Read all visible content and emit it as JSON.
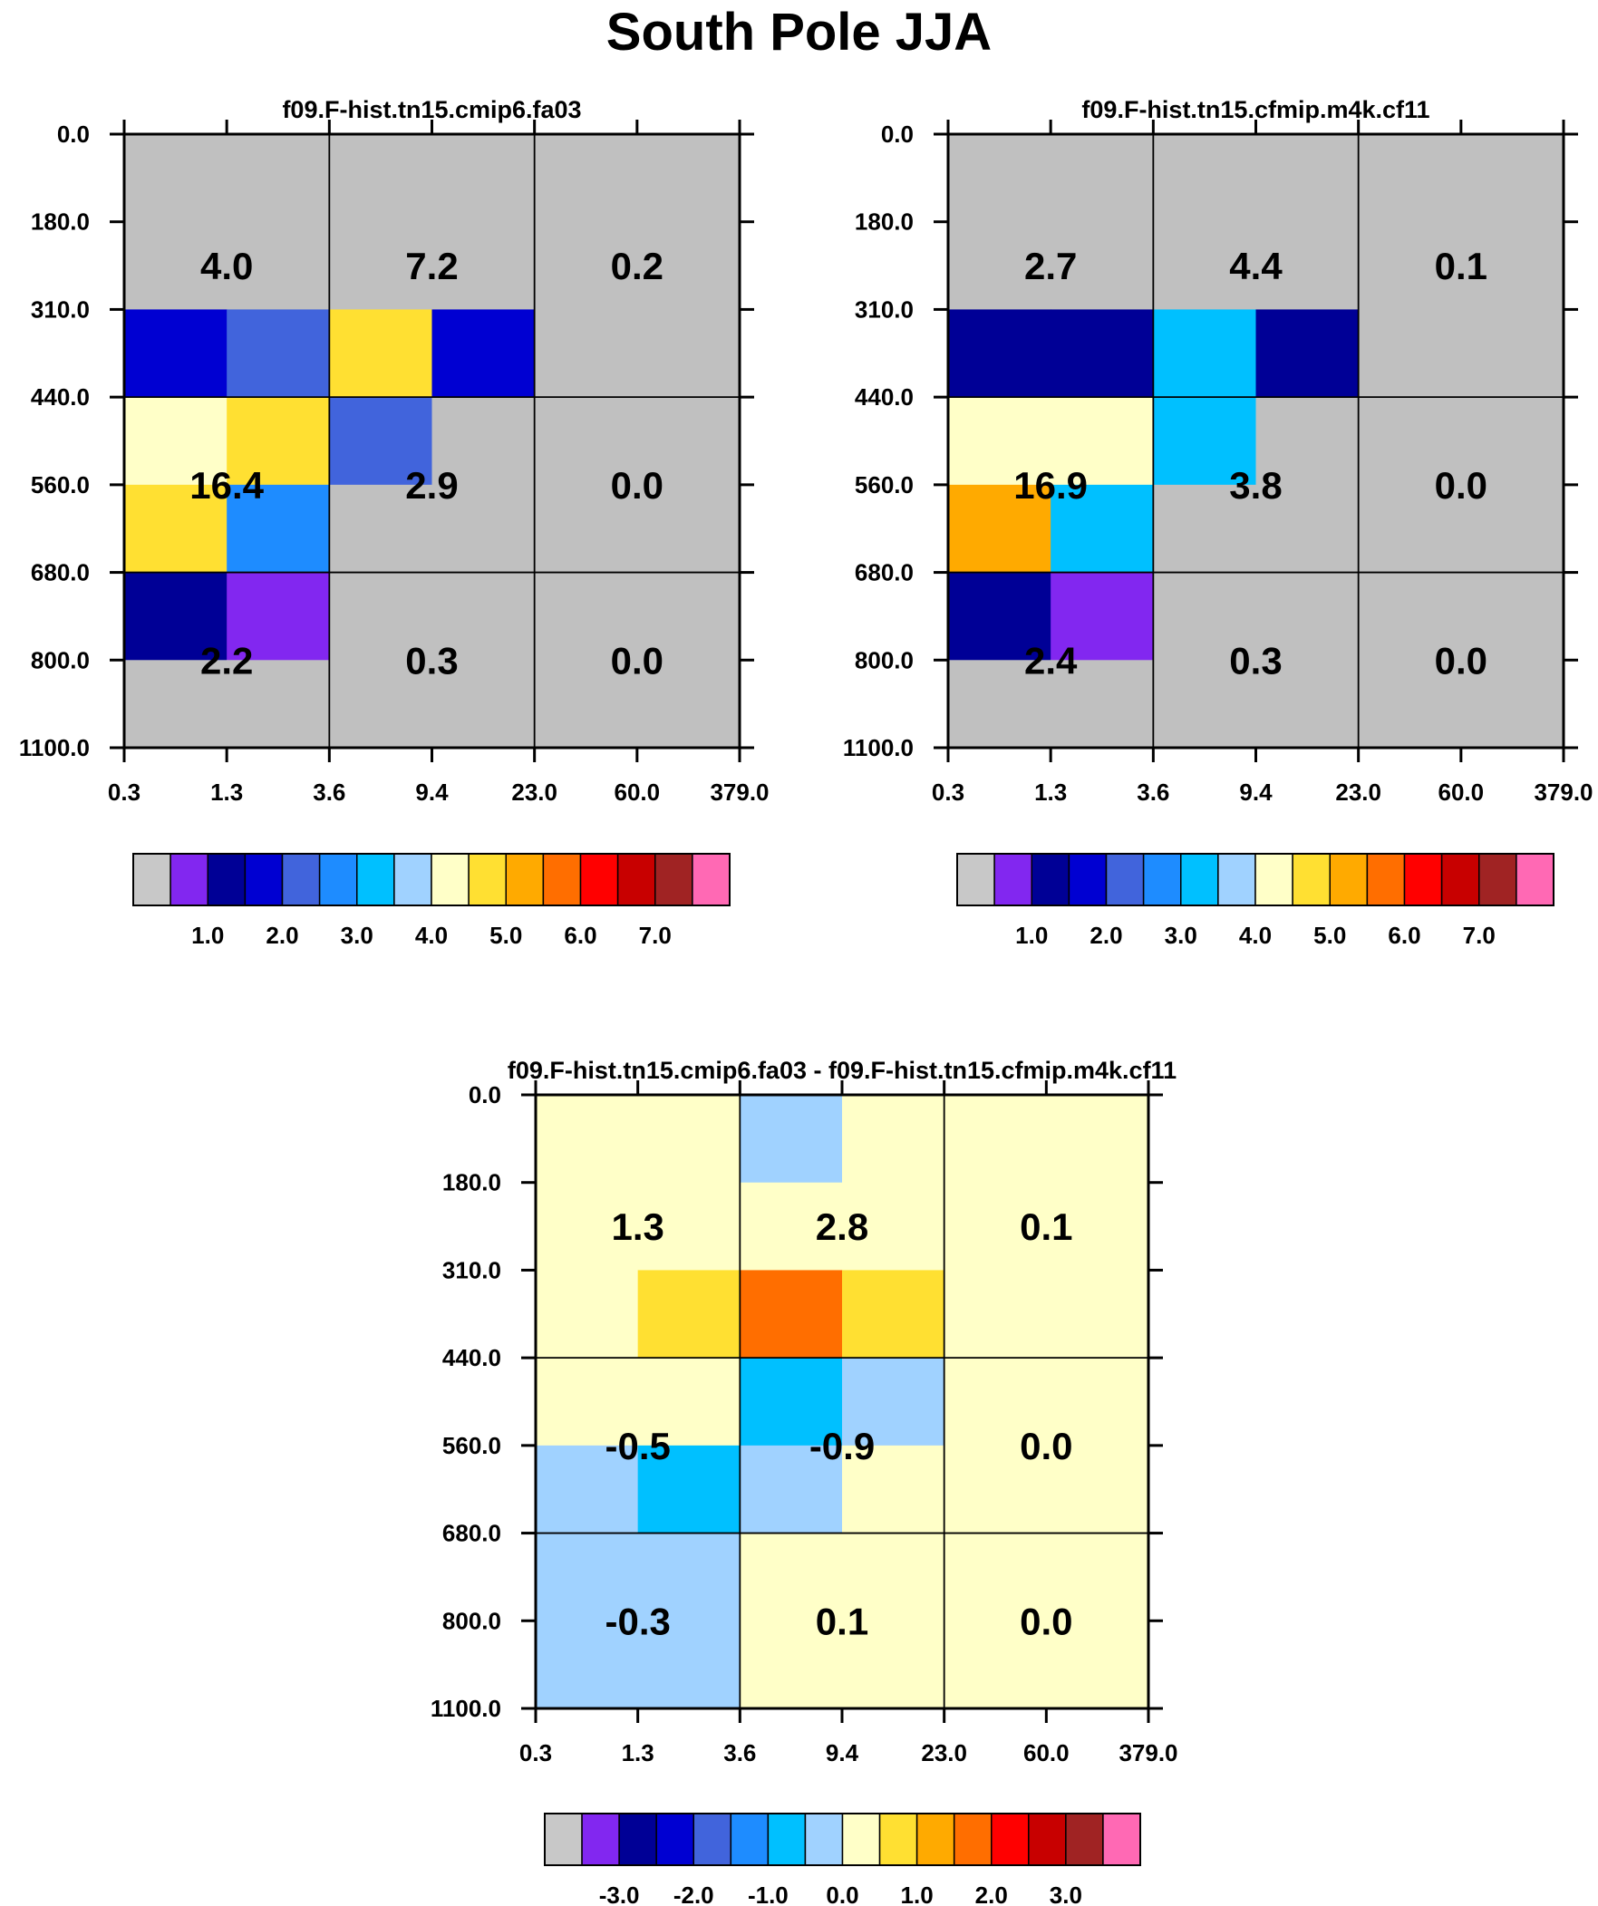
{
  "title": "South Pole JJA",
  "colors": {
    "palette": [
      "#c8c8c8",
      "#8227f0",
      "#000096",
      "#0000d2",
      "#4164dc",
      "#1e8cff",
      "#00c0ff",
      "#a0d2ff",
      "#ffffc8",
      "#ffe032",
      "#ffaa00",
      "#ff6e00",
      "#ff0000",
      "#c80000",
      "#a02323",
      "#ff69b4"
    ],
    "missing": "#c0c0c0"
  },
  "chart_data": [
    {
      "type": "heatmap",
      "title": "f09.F-hist.tn15.cmip6.fa03",
      "x_tick_labels": [
        "0.3",
        "1.3",
        "3.6",
        "9.4",
        "23.0",
        "60.0",
        "379.0"
      ],
      "y_tick_labels": [
        "0.0",
        "180.0",
        "310.0",
        "440.0",
        "560.0",
        "680.0",
        "800.0",
        "1100.0"
      ],
      "cells": [
        [
          0,
          0,
          0,
          0,
          0,
          0
        ],
        [
          0,
          0,
          0,
          0,
          0,
          0
        ],
        [
          3,
          4,
          9,
          3,
          0,
          0
        ],
        [
          8,
          9,
          4,
          0,
          0,
          0
        ],
        [
          9,
          5,
          0,
          0,
          0,
          0
        ],
        [
          2,
          1,
          0,
          0,
          0,
          0
        ],
        [
          0,
          0,
          0,
          0,
          0,
          0
        ]
      ],
      "box_values": [
        [
          "4.0",
          "7.2",
          "0.2"
        ],
        [
          "16.4",
          "2.9",
          "0.0"
        ],
        [
          "2.2",
          "0.3",
          "0.0"
        ]
      ],
      "colorbar_labels": [
        "1.0",
        "2.0",
        "3.0",
        "4.0",
        "5.0",
        "6.0",
        "7.0"
      ]
    },
    {
      "type": "heatmap",
      "title": "f09.F-hist.tn15.cfmip.m4k.cf11",
      "x_tick_labels": [
        "0.3",
        "1.3",
        "3.6",
        "9.4",
        "23.0",
        "60.0",
        "379.0"
      ],
      "y_tick_labels": [
        "0.0",
        "180.0",
        "310.0",
        "440.0",
        "560.0",
        "680.0",
        "800.0",
        "1100.0"
      ],
      "cells": [
        [
          0,
          0,
          0,
          0,
          0,
          0
        ],
        [
          0,
          0,
          0,
          0,
          0,
          0
        ],
        [
          2,
          2,
          6,
          2,
          0,
          0
        ],
        [
          8,
          8,
          6,
          0,
          0,
          0
        ],
        [
          10,
          6,
          0,
          0,
          0,
          0
        ],
        [
          2,
          1,
          0,
          0,
          0,
          0
        ],
        [
          0,
          0,
          0,
          0,
          0,
          0
        ]
      ],
      "box_values": [
        [
          "2.7",
          "4.4",
          "0.1"
        ],
        [
          "16.9",
          "3.8",
          "0.0"
        ],
        [
          "2.4",
          "0.3",
          "0.0"
        ]
      ],
      "colorbar_labels": [
        "1.0",
        "2.0",
        "3.0",
        "4.0",
        "5.0",
        "6.0",
        "7.0"
      ]
    },
    {
      "type": "heatmap",
      "title": "f09.F-hist.tn15.cmip6.fa03 - f09.F-hist.tn15.cfmip.m4k.cf11",
      "x_tick_labels": [
        "0.3",
        "1.3",
        "3.6",
        "9.4",
        "23.0",
        "60.0",
        "379.0"
      ],
      "y_tick_labels": [
        "0.0",
        "180.0",
        "310.0",
        "440.0",
        "560.0",
        "680.0",
        "800.0",
        "1100.0"
      ],
      "cells": [
        [
          8,
          8,
          7,
          8,
          8,
          8
        ],
        [
          8,
          8,
          8,
          8,
          8,
          8
        ],
        [
          8,
          9,
          11,
          9,
          8,
          8
        ],
        [
          8,
          8,
          6,
          7,
          8,
          8
        ],
        [
          7,
          6,
          7,
          8,
          8,
          8
        ],
        [
          7,
          7,
          8,
          8,
          8,
          8
        ],
        [
          7,
          7,
          8,
          8,
          8,
          8
        ]
      ],
      "box_values": [
        [
          "1.3",
          "2.8",
          "0.1"
        ],
        [
          "-0.5",
          "-0.9",
          "0.0"
        ],
        [
          "-0.3",
          "0.1",
          "0.0"
        ]
      ],
      "colorbar_labels": [
        "-3.0",
        "-2.0",
        "-1.0",
        "0.0",
        "1.0",
        "2.0",
        "3.0"
      ]
    }
  ]
}
